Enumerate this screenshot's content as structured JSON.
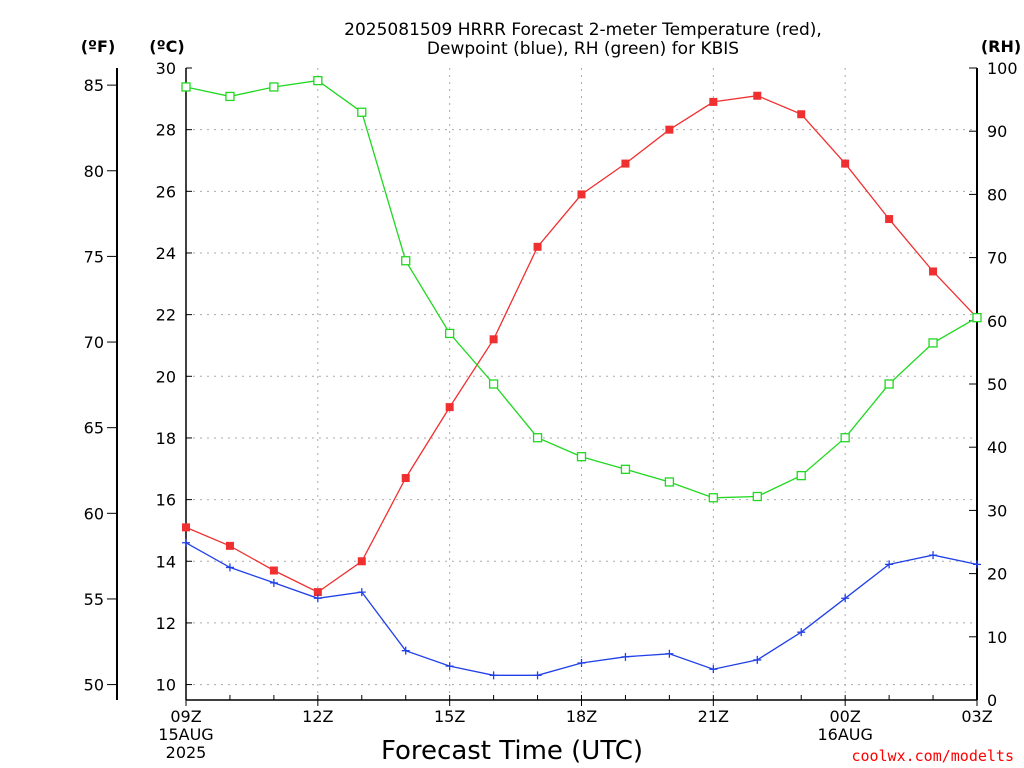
{
  "colors": {
    "temperature": "#f03030",
    "dewpoint": "#2040e8",
    "rh": "#20d820",
    "axis": "#000000",
    "credit": "#ff0000",
    "grid": "#aaaaaa"
  },
  "chart_data": {
    "type": "line",
    "title_lines": [
      "2025081509 HRRR Forecast 2-meter Temperature (red),",
      "Dewpoint (blue), RH (green) for KBIS"
    ],
    "xlabel": "Forecast Time (UTC)",
    "credit": "coolwx.com/modelts",
    "axis_units": {
      "fahrenheit": "(ºF)",
      "celsius": "(ºC)",
      "rh": "(RH)"
    },
    "x_hours": [
      0,
      1,
      2,
      3,
      4,
      5,
      6,
      7,
      8,
      9,
      10,
      11,
      12,
      13,
      14,
      15,
      16,
      17,
      18
    ],
    "x_ticks": [
      {
        "hour": 0,
        "lines": [
          "09Z",
          "15AUG",
          "2025"
        ]
      },
      {
        "hour": 3,
        "lines": [
          "12Z"
        ]
      },
      {
        "hour": 6,
        "lines": [
          "15Z"
        ]
      },
      {
        "hour": 9,
        "lines": [
          "18Z"
        ]
      },
      {
        "hour": 12,
        "lines": [
          "21Z"
        ]
      },
      {
        "hour": 15,
        "lines": [
          "00Z",
          "16AUG"
        ]
      },
      {
        "hour": 18,
        "lines": [
          "03Z"
        ]
      }
    ],
    "celsius_axis": {
      "ylim": [
        9.5,
        30
      ],
      "ticks": [
        "10",
        "12",
        "14",
        "16",
        "18",
        "20",
        "22",
        "24",
        "26",
        "28",
        "30"
      ]
    },
    "fahrenheit_axis": {
      "ylim": [
        49.1,
        86
      ],
      "ticks": [
        "50",
        "55",
        "60",
        "65",
        "70",
        "75",
        "80",
        "85"
      ]
    },
    "rh_axis": {
      "ylim": [
        0,
        100
      ],
      "ticks": [
        "0",
        "10",
        "20",
        "30",
        "40",
        "50",
        "60",
        "70",
        "80",
        "90",
        "100"
      ]
    },
    "grid": true,
    "series": [
      {
        "name": "Temperature",
        "axis": "celsius",
        "marker": "filled-square",
        "values": [
          15.1,
          14.5,
          13.7,
          13.0,
          14.0,
          16.7,
          19.0,
          21.2,
          24.2,
          25.9,
          26.9,
          28.0,
          28.9,
          29.1,
          28.5,
          26.9,
          25.1,
          23.4,
          21.9
        ]
      },
      {
        "name": "Dewpoint",
        "axis": "celsius",
        "marker": "plus",
        "values": [
          14.6,
          13.8,
          13.3,
          12.8,
          13.0,
          11.1,
          10.6,
          10.3,
          10.3,
          10.7,
          10.9,
          11.0,
          10.5,
          10.8,
          11.7,
          12.8,
          13.9,
          14.2,
          13.9
        ]
      },
      {
        "name": "RH",
        "axis": "rh",
        "marker": "open-square",
        "values": [
          97,
          95.5,
          97,
          98,
          93,
          69.5,
          58,
          50,
          41.5,
          38.5,
          36.5,
          34.5,
          32,
          32.2,
          35.5,
          41.5,
          50,
          56.5,
          60.5
        ]
      }
    ]
  }
}
